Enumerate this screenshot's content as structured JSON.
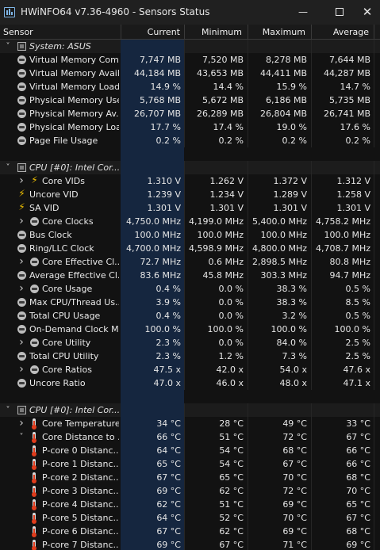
{
  "window": {
    "title": "HWiNFO64 v7.36-4960 - Sensors Status",
    "minimize_icon": "minimize-icon",
    "maximize_icon": "maximize-icon",
    "close_icon": "close-icon"
  },
  "columns": {
    "sensor": "Sensor",
    "current": "Current",
    "minimum": "Minimum",
    "maximum": "Maximum",
    "average": "Average"
  },
  "rows": [
    {
      "type": "group",
      "label": "System: ASUS",
      "icon": "chip-icon",
      "chevron": "collapse"
    },
    {
      "type": "item",
      "label": "Virtual Memory Com...",
      "icon": "circle-icon",
      "current": "7,747 MB",
      "minimum": "7,520 MB",
      "maximum": "8,278 MB",
      "average": "7,644 MB"
    },
    {
      "type": "item",
      "label": "Virtual Memory Avail...",
      "icon": "circle-icon",
      "current": "44,184 MB",
      "minimum": "43,653 MB",
      "maximum": "44,411 MB",
      "average": "44,287 MB"
    },
    {
      "type": "item",
      "label": "Virtual Memory Load",
      "icon": "circle-icon",
      "current": "14.9 %",
      "minimum": "14.4 %",
      "maximum": "15.9 %",
      "average": "14.7 %"
    },
    {
      "type": "item",
      "label": "Physical Memory Used",
      "icon": "circle-icon",
      "current": "5,768 MB",
      "minimum": "5,672 MB",
      "maximum": "6,186 MB",
      "average": "5,735 MB"
    },
    {
      "type": "item",
      "label": "Physical Memory Av...",
      "icon": "circle-icon",
      "current": "26,707 MB",
      "minimum": "26,289 MB",
      "maximum": "26,804 MB",
      "average": "26,741 MB"
    },
    {
      "type": "item",
      "label": "Physical Memory Load",
      "icon": "circle-icon",
      "current": "17.7 %",
      "minimum": "17.4 %",
      "maximum": "19.0 %",
      "average": "17.6 %"
    },
    {
      "type": "item",
      "label": "Page File Usage",
      "icon": "circle-icon",
      "current": "0.2 %",
      "minimum": "0.2 %",
      "maximum": "0.2 %",
      "average": "0.2 %"
    },
    {
      "type": "blank"
    },
    {
      "type": "group",
      "label": "CPU [#0]: Intel Cor...",
      "icon": "chip-icon",
      "chevron": "collapse"
    },
    {
      "type": "item",
      "label": "Core VIDs",
      "icon": "bolt-icon",
      "expand": true,
      "current": "1.310 V",
      "minimum": "1.262 V",
      "maximum": "1.372 V",
      "average": "1.312 V"
    },
    {
      "type": "item",
      "label": "Uncore VID",
      "icon": "bolt-icon",
      "current": "1.239 V",
      "minimum": "1.234 V",
      "maximum": "1.289 V",
      "average": "1.258 V"
    },
    {
      "type": "item",
      "label": "SA VID",
      "icon": "bolt-icon",
      "current": "1.301 V",
      "minimum": "1.301 V",
      "maximum": "1.301 V",
      "average": "1.301 V"
    },
    {
      "type": "item",
      "label": "Core Clocks",
      "icon": "circle-icon",
      "expand": true,
      "current": "4,750.0 MHz",
      "minimum": "4,199.0 MHz",
      "maximum": "5,400.0 MHz",
      "average": "4,758.2 MHz"
    },
    {
      "type": "item",
      "label": "Bus Clock",
      "icon": "circle-icon",
      "current": "100.0 MHz",
      "minimum": "100.0 MHz",
      "maximum": "100.0 MHz",
      "average": "100.0 MHz"
    },
    {
      "type": "item",
      "label": "Ring/LLC Clock",
      "icon": "circle-icon",
      "current": "4,700.0 MHz",
      "minimum": "4,598.9 MHz",
      "maximum": "4,800.0 MHz",
      "average": "4,708.7 MHz"
    },
    {
      "type": "item",
      "label": "Core Effective Cl...",
      "icon": "circle-icon",
      "expand": true,
      "current": "72.7 MHz",
      "minimum": "0.6 MHz",
      "maximum": "2,898.5 MHz",
      "average": "80.8 MHz"
    },
    {
      "type": "item",
      "label": "Average Effective Cl...",
      "icon": "circle-icon",
      "current": "83.6 MHz",
      "minimum": "45.8 MHz",
      "maximum": "303.3 MHz",
      "average": "94.7 MHz"
    },
    {
      "type": "item",
      "label": "Core Usage",
      "icon": "circle-icon",
      "expand": true,
      "current": "0.4 %",
      "minimum": "0.0 %",
      "maximum": "38.3 %",
      "average": "0.5 %"
    },
    {
      "type": "item",
      "label": "Max CPU/Thread Us...",
      "icon": "circle-icon",
      "current": "3.9 %",
      "minimum": "0.0 %",
      "maximum": "38.3 %",
      "average": "8.5 %"
    },
    {
      "type": "item",
      "label": "Total CPU Usage",
      "icon": "circle-icon",
      "current": "0.4 %",
      "minimum": "0.0 %",
      "maximum": "3.2 %",
      "average": "0.5 %"
    },
    {
      "type": "item",
      "label": "On-Demand Clock M...",
      "icon": "circle-icon",
      "current": "100.0 %",
      "minimum": "100.0 %",
      "maximum": "100.0 %",
      "average": "100.0 %"
    },
    {
      "type": "item",
      "label": "Core Utility",
      "icon": "circle-icon",
      "expand": true,
      "current": "2.3 %",
      "minimum": "0.0 %",
      "maximum": "84.0 %",
      "average": "2.5 %"
    },
    {
      "type": "item",
      "label": "Total CPU Utility",
      "icon": "circle-icon",
      "current": "2.3 %",
      "minimum": "1.2 %",
      "maximum": "7.3 %",
      "average": "2.5 %"
    },
    {
      "type": "item",
      "label": "Core Ratios",
      "icon": "circle-icon",
      "expand": true,
      "current": "47.5 x",
      "minimum": "42.0 x",
      "maximum": "54.0 x",
      "average": "47.6 x"
    },
    {
      "type": "item",
      "label": "Uncore Ratio",
      "icon": "circle-icon",
      "current": "47.0 x",
      "minimum": "46.0 x",
      "maximum": "48.0 x",
      "average": "47.1 x"
    },
    {
      "type": "blank"
    },
    {
      "type": "group",
      "label": "CPU [#0]: Intel Cor...",
      "icon": "chip-icon",
      "chevron": "collapse"
    },
    {
      "type": "item",
      "label": "Core Temperatures",
      "icon": "thermometer-icon",
      "expand": true,
      "current": "34 °C",
      "minimum": "28 °C",
      "maximum": "49 °C",
      "average": "33 °C"
    },
    {
      "type": "item",
      "label": "Core Distance to ...",
      "icon": "thermometer-icon",
      "collapse": true,
      "current": "66 °C",
      "minimum": "51 °C",
      "maximum": "72 °C",
      "average": "67 °C"
    },
    {
      "type": "item",
      "label": "P-core 0 Distanc...",
      "icon": "thermometer-icon",
      "indent": 2,
      "current": "64 °C",
      "minimum": "54 °C",
      "maximum": "68 °C",
      "average": "66 °C"
    },
    {
      "type": "item",
      "label": "P-core 1 Distanc...",
      "icon": "thermometer-icon",
      "indent": 2,
      "current": "65 °C",
      "minimum": "54 °C",
      "maximum": "67 °C",
      "average": "66 °C"
    },
    {
      "type": "item",
      "label": "P-core 2 Distanc...",
      "icon": "thermometer-icon",
      "indent": 2,
      "current": "67 °C",
      "minimum": "65 °C",
      "maximum": "70 °C",
      "average": "68 °C"
    },
    {
      "type": "item",
      "label": "P-core 3 Distanc...",
      "icon": "thermometer-icon",
      "indent": 2,
      "current": "69 °C",
      "minimum": "62 °C",
      "maximum": "72 °C",
      "average": "70 °C"
    },
    {
      "type": "item",
      "label": "P-core 4 Distanc...",
      "icon": "thermometer-icon",
      "indent": 2,
      "current": "62 °C",
      "minimum": "51 °C",
      "maximum": "69 °C",
      "average": "65 °C"
    },
    {
      "type": "item",
      "label": "P-core 5 Distanc...",
      "icon": "thermometer-icon",
      "indent": 2,
      "current": "64 °C",
      "minimum": "52 °C",
      "maximum": "70 °C",
      "average": "67 °C"
    },
    {
      "type": "item",
      "label": "P-core 6 Distanc...",
      "icon": "thermometer-icon",
      "indent": 2,
      "current": "67 °C",
      "minimum": "62 °C",
      "maximum": "69 °C",
      "average": "68 °C"
    },
    {
      "type": "item",
      "label": "P-core 7 Distanc...",
      "icon": "thermometer-icon",
      "indent": 2,
      "current": "69 °C",
      "minimum": "67 °C",
      "maximum": "71 °C",
      "average": "69 °C"
    }
  ]
}
